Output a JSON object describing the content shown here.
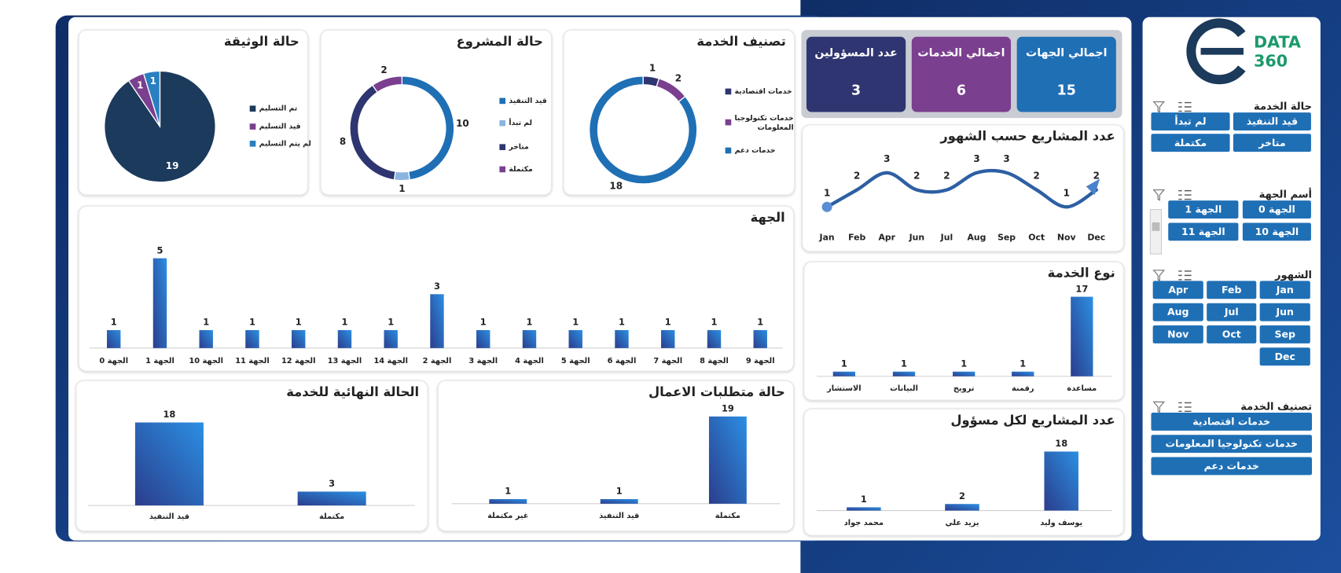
{
  "logo": {
    "text": "DATA",
    "number": "360"
  },
  "kpis": [
    {
      "label": "اجمالي الجهات",
      "value": 15,
      "color": "#1f6fb5"
    },
    {
      "label": "اجمالي الخدمات",
      "value": 6,
      "color": "#7b3f8f"
    },
    {
      "label": "عدد المسؤولين",
      "value": 3,
      "color": "#2e3570"
    }
  ],
  "slicers": [
    {
      "title": "حالة الخدمة",
      "items": [
        "قيد التنفيذ",
        "لم تبدأ",
        "متاخر",
        "مكتملة"
      ]
    },
    {
      "title": "أسم الجهة",
      "items": [
        "الجهة 0",
        "الجهة 1",
        "الجهة 10",
        "الجهة 11"
      ]
    },
    {
      "title": "الشهور",
      "items": [
        "Jan",
        "Feb",
        "Apr",
        "Jun",
        "Jul",
        "Aug",
        "Sep",
        "Oct",
        "Nov",
        "Dec"
      ]
    },
    {
      "title": "تصنيف الخدمة",
      "items": [
        "خدمات اقتصادية",
        "خدمات تكنولوجيا المعلومات",
        "خدمات دعم"
      ]
    }
  ],
  "chart_data": [
    {
      "type": "pie",
      "title": "حالة الوثيقة",
      "categories": [
        "تم التسليم",
        "قيد التسليم",
        "لم يتم التسليم"
      ],
      "values": [
        19,
        1,
        1
      ],
      "colors": [
        "#1b3a5c",
        "#7b3f8f",
        "#2a7fc0"
      ]
    },
    {
      "type": "donut",
      "title": "حالة المشروع",
      "categories": [
        "قيد التنفيذ",
        "لم تبدأ",
        "متاخر",
        "مكتملة"
      ],
      "values": [
        10,
        1,
        8,
        2
      ],
      "colors": [
        "#1f6fb5",
        "#8ab4e0",
        "#2e3570",
        "#7b3f8f"
      ]
    },
    {
      "type": "donut",
      "title": "تصنيف الخدمة",
      "categories": [
        "خدمات اقتصادية",
        "خدمات تكنولوجيا المعلومات",
        "خدمات دعم"
      ],
      "values": [
        1,
        2,
        18
      ],
      "colors": [
        "#2e3570",
        "#7b3f8f",
        "#1f6fb5"
      ]
    },
    {
      "type": "line",
      "title": "عدد المشاريع حسب الشهور",
      "categories": [
        "Jan",
        "Feb",
        "Apr",
        "Jun",
        "Jul",
        "Aug",
        "Sep",
        "Oct",
        "Nov",
        "Dec"
      ],
      "values": [
        1,
        2,
        3,
        2,
        2,
        3,
        3,
        2,
        1,
        2
      ],
      "color": "#2d5fa3"
    },
    {
      "type": "bar",
      "title": "الجهة",
      "categories": [
        "الجهة 0",
        "الجهة 1",
        "الجهة 10",
        "الجهة 11",
        "الجهة 12",
        "الجهة 13",
        "الجهة 14",
        "الجهة 2",
        "الجهة 3",
        "الجهة 4",
        "الجهة 5",
        "الجهة 6",
        "الجهة 7",
        "الجهة 8",
        "الجهة 9"
      ],
      "values": [
        1,
        5,
        1,
        1,
        1,
        1,
        1,
        3,
        1,
        1,
        1,
        1,
        1,
        1,
        1
      ],
      "colors": [
        "#2b3d8c",
        "#2b8fe3"
      ]
    },
    {
      "type": "bar",
      "title": "نوع الخدمة",
      "categories": [
        "الاستشار",
        "البيانات",
        "ترويج",
        "رقمنة",
        "مساعدة"
      ],
      "values": [
        1,
        1,
        1,
        1,
        17
      ],
      "colors": [
        "#2b3d8c",
        "#2b8fe3"
      ]
    },
    {
      "type": "bar",
      "title": "الحالة النهائية للخدمة",
      "categories": [
        "قيد التنفيذ",
        "مكتملة"
      ],
      "values": [
        18,
        3
      ],
      "colors": [
        "#2b3d8c",
        "#2b8fe3"
      ]
    },
    {
      "type": "bar",
      "title": "حالة متطلبات الاعمال",
      "categories": [
        "غير مكتملة",
        "قيد التنفيذ",
        "مكتملة"
      ],
      "values": [
        1,
        1,
        19
      ],
      "colors": [
        "#2b3d8c",
        "#2b8fe3"
      ]
    },
    {
      "type": "bar",
      "title": "عدد المشاريع لكل مسؤول",
      "categories": [
        "محمد جواد",
        "يزيد علي",
        "يوسف وليد"
      ],
      "values": [
        1,
        2,
        18
      ],
      "colors": [
        "#2b3d8c",
        "#2b8fe3"
      ]
    }
  ]
}
